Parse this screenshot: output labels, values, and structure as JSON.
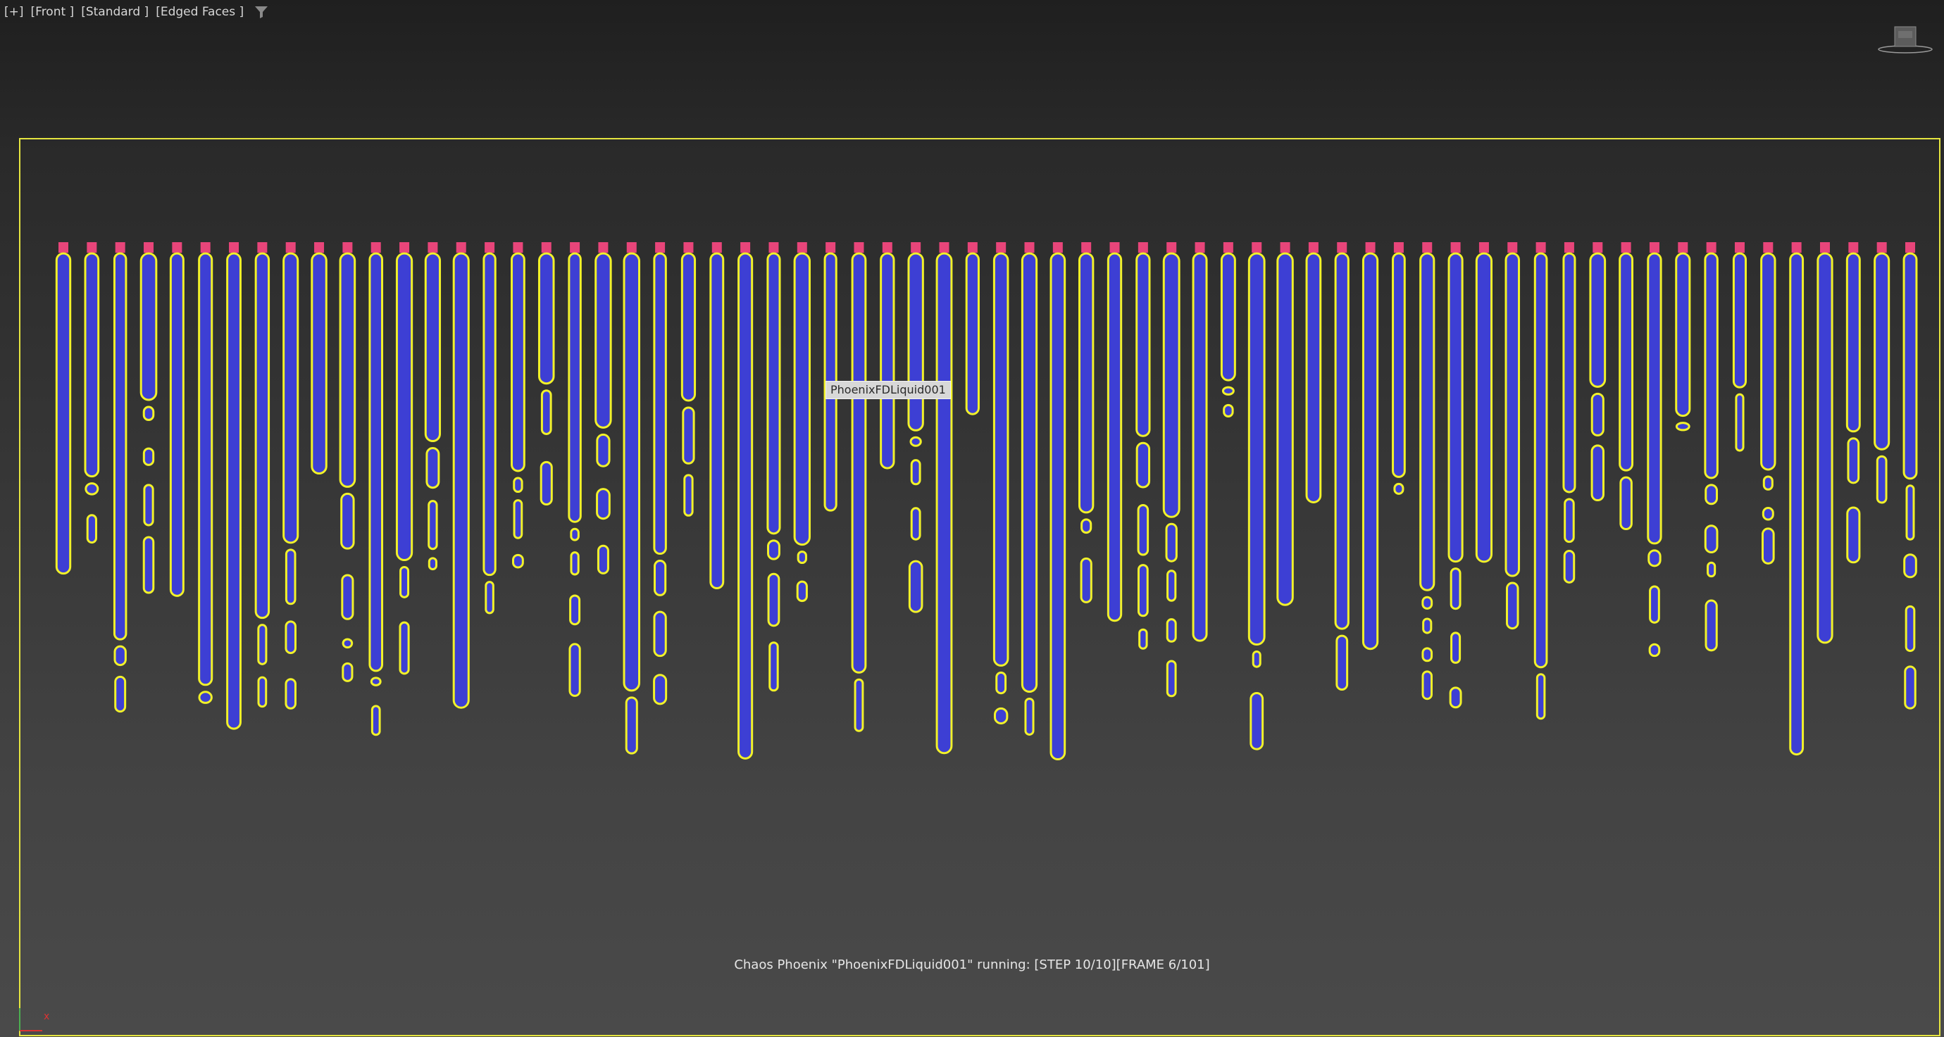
{
  "viewport": {
    "menu_label": "[+]",
    "view_label": "[Front ]",
    "shading_label": "[Standard ]",
    "edged_label": "[Edged Faces ]",
    "filter_icon": "filter-funnel-icon"
  },
  "scene": {
    "object_name": "PhoenixFDLiquid001",
    "liquid_color": "#3d3fd4",
    "outline_color": "#f1f12a",
    "emitter_color": "#e8457a",
    "bounds_color": "#e6e640",
    "emitter_count": 66
  },
  "status": {
    "text": "Chaos Phoenix \"PhoenixFDLiquid001\" running: [STEP 10/10][FRAME 6/101]"
  },
  "gizmo": {
    "x_label": "x"
  }
}
